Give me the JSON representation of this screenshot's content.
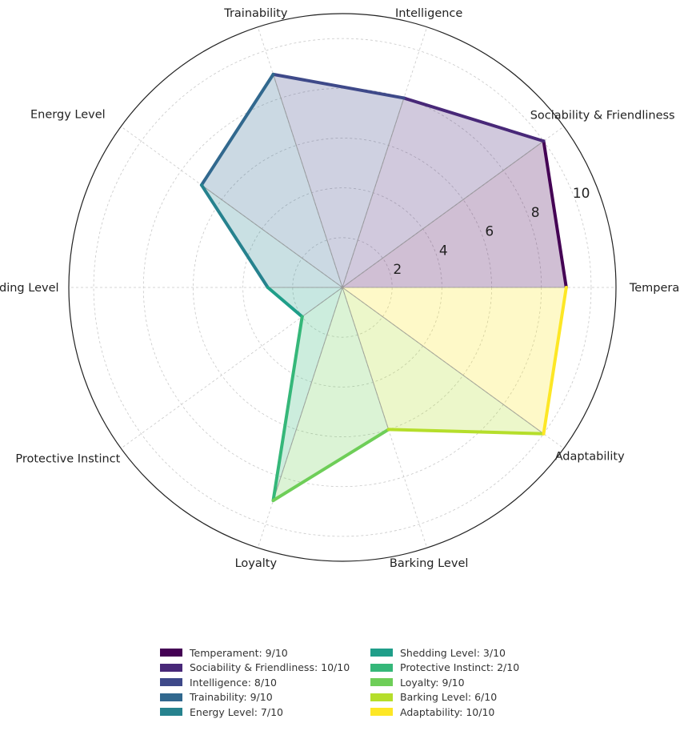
{
  "chart_data": {
    "type": "radar",
    "title": "",
    "axes": [
      "Temperament",
      "Sociability & Friendliness",
      "Intelligence",
      "Trainability",
      "Energy Level",
      "Shedding Level",
      "Protective Instinct",
      "Loyalty",
      "Barking Level",
      "Adaptability"
    ],
    "values": [
      9,
      10,
      8,
      9,
      7,
      3,
      2,
      9,
      6,
      10
    ],
    "rlim": [
      0,
      11
    ],
    "rticks": [
      2,
      4,
      6,
      8,
      10
    ],
    "rtick_labels": [
      "2",
      "4",
      "6",
      "8",
      "10"
    ],
    "colors": [
      "#440154",
      "#482878",
      "#3e4989",
      "#31688e",
      "#26828e",
      "#1f9e89",
      "#35b779",
      "#6ece58",
      "#b5de2b",
      "#fde725"
    ],
    "legend": {
      "placement": "bottom-center",
      "entries": [
        "Temperament: 9/10",
        "Sociability & Friendliness: 10/10",
        "Intelligence: 8/10",
        "Trainability: 9/10",
        "Energy Level: 7/10",
        "Shedding Level: 3/10",
        "Protective Instinct: 2/10",
        "Loyalty: 9/10",
        "Barking Level: 6/10",
        "Adaptability: 10/10"
      ]
    },
    "grid": true
  }
}
